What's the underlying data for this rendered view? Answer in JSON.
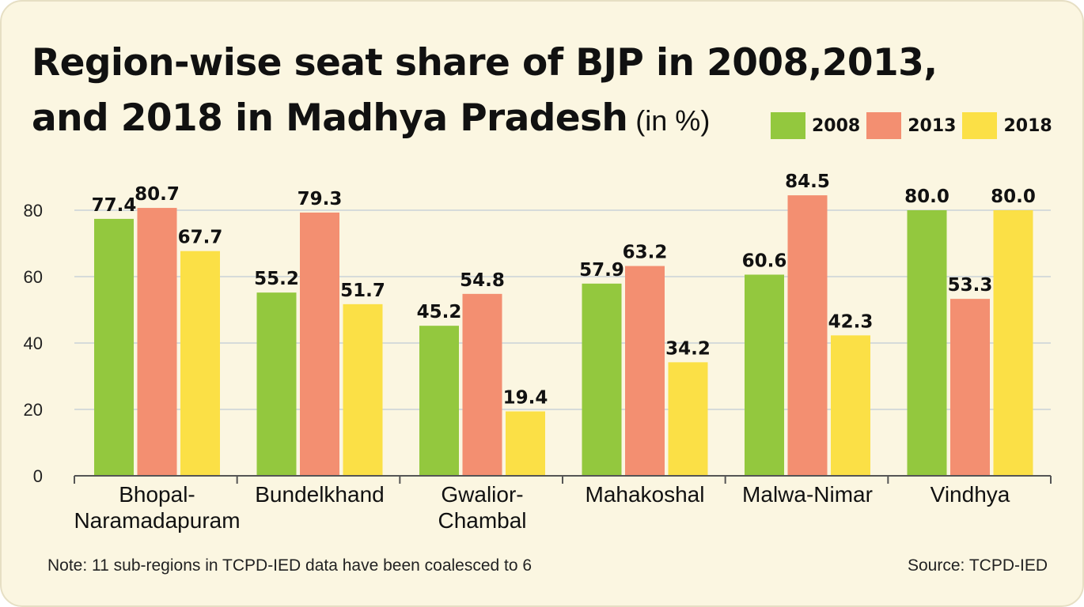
{
  "header": {
    "title_line1": "Region-wise seat share of BJP in 2008,2013,",
    "title_line2": "and 2018 in Madhya Pradesh",
    "unit": "(in %)"
  },
  "legend": [
    {
      "label": "2008",
      "color": "#93c83e"
    },
    {
      "label": "2013",
      "color": "#f38f71"
    },
    {
      "label": "2018",
      "color": "#fbe046"
    }
  ],
  "footer": {
    "note": "Note: 11 sub-regions in TCPD-IED data have been coalesced to 6",
    "source": "Source: TCPD-IED"
  },
  "chart_data": {
    "type": "bar",
    "title": "Region-wise seat share of BJP in 2008,2013, and 2018 in Madhya Pradesh",
    "categories": [
      [
        "Bhopal-",
        "Naramadapuram"
      ],
      [
        "Bundelkhand"
      ],
      [
        "Gwalior-",
        "Chambal"
      ],
      [
        "Mahakoshal"
      ],
      [
        "Malwa-Nimar"
      ],
      [
        "Vindhya"
      ]
    ],
    "series": [
      {
        "name": "2008",
        "color": "#93c83e",
        "values": [
          77.4,
          55.2,
          45.2,
          57.9,
          60.6,
          80.0
        ],
        "labels": [
          "77.4",
          "55.2",
          "45.2",
          "57.9",
          "60.6",
          "80.0"
        ]
      },
      {
        "name": "2013",
        "color": "#f38f71",
        "values": [
          80.7,
          79.3,
          54.8,
          63.2,
          84.5,
          53.3
        ],
        "labels": [
          "80.7",
          "79.3",
          "54.8",
          "63.2",
          "84.5",
          "53.3"
        ]
      },
      {
        "name": "2018",
        "color": "#fbe046",
        "values": [
          67.7,
          51.7,
          19.4,
          34.2,
          42.3,
          80.0
        ],
        "labels": [
          "67.7",
          "51.7",
          "19.4",
          "34.2",
          "42.3",
          "80.0"
        ]
      }
    ],
    "yticks": [
      0,
      20,
      40,
      60,
      80
    ],
    "ylim": [
      0,
      90
    ],
    "grid": true,
    "legend_position": "top-right"
  }
}
